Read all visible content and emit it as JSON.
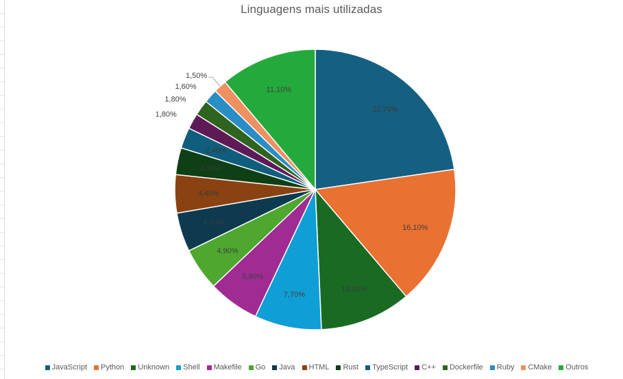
{
  "chart_data": {
    "type": "pie",
    "title": "Linguagens mais utilizadas",
    "labels_format": "percent",
    "legend_position": "bottom",
    "slices": [
      {
        "name": "JavaScript",
        "value": 22.7,
        "label": "22,70%",
        "color": "#156082"
      },
      {
        "name": "Python",
        "value": 16.1,
        "label": "16,10%",
        "color": "#E97132"
      },
      {
        "name": "Unknown",
        "value": 10.5,
        "label": "10,50%",
        "color": "#196B24"
      },
      {
        "name": "Shell",
        "value": 7.7,
        "label": "7,70%",
        "color": "#0F9ED5"
      },
      {
        "name": "Makefile",
        "value": 5.9,
        "label": "5,90%",
        "color": "#A02B93"
      },
      {
        "name": "Go",
        "value": 4.9,
        "label": "4,90%",
        "color": "#4EA72E"
      },
      {
        "name": "Java",
        "value": 4.5,
        "label": "4,50%",
        "color": "#0D3A4E"
      },
      {
        "name": "HTML",
        "value": 4.4,
        "label": "4,40%",
        "color": "#8B4212"
      },
      {
        "name": "Rust",
        "value": 3.1,
        "label": "3,10%",
        "color": "#0F3F15"
      },
      {
        "name": "TypeScript",
        "value": 2.4,
        "label": "2,40%",
        "color": "#105E7D"
      },
      {
        "name": "C++",
        "value": 1.8,
        "label": "1,80%",
        "color": "#5E1A57"
      },
      {
        "name": "Dockerfile",
        "value": 1.8,
        "label": "1,80%",
        "color": "#2F6420"
      },
      {
        "name": "Ruby",
        "value": 1.6,
        "label": "1,60%",
        "color": "#2A8DC4"
      },
      {
        "name": "CMake",
        "value": 1.5,
        "label": "1,50%",
        "color": "#EE9060"
      },
      {
        "name": "Outros",
        "value": 11.1,
        "label": "11,10%",
        "color": "#24AA3C"
      }
    ]
  }
}
